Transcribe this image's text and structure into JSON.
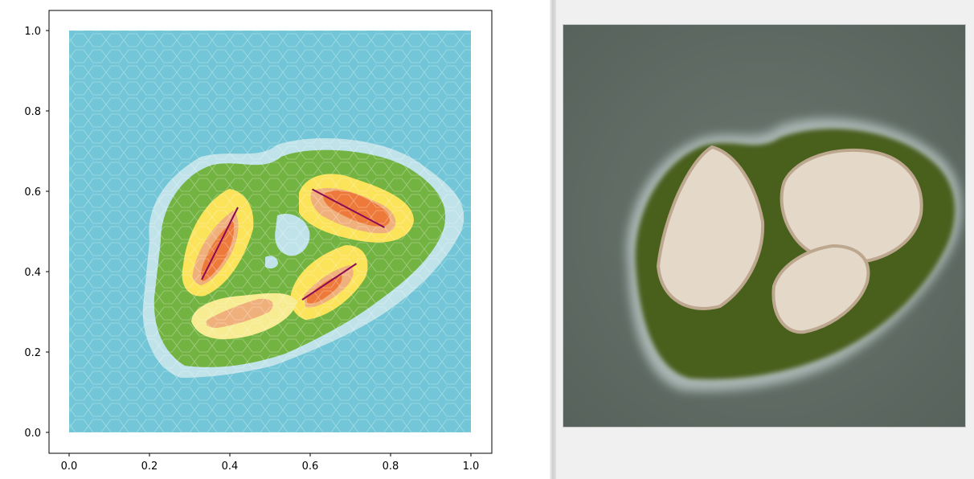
{
  "chart_data": {
    "type": "map",
    "xlim": [
      0,
      1
    ],
    "ylim": [
      0,
      1
    ],
    "x_ticks": [
      "0.0",
      "0.2",
      "0.4",
      "0.6",
      "0.8",
      "1.0"
    ],
    "y_ticks": [
      "0.0",
      "0.2",
      "0.4",
      "0.6",
      "0.8",
      "1.0"
    ],
    "colors": {
      "water": "#72c6d7",
      "shallow": "#c0e3ea",
      "land": "#73b341",
      "hill": "#fbe35a",
      "hill_light": "#f7ec92",
      "mountain": "#f0b07c",
      "peak": "#ed7a3b",
      "ridge": "#8b0a55"
    },
    "ridges": [
      {
        "x": [
          0.33,
          0.42
        ],
        "y": [
          0.38,
          0.56
        ]
      },
      {
        "x": [
          0.605,
          0.785
        ],
        "y": [
          0.605,
          0.51
        ]
      },
      {
        "x": [
          0.58,
          0.715
        ],
        "y": [
          0.33,
          0.42
        ]
      }
    ]
  },
  "render_view": {
    "colors": {
      "sea": "#5e6a63",
      "foam": "#a9b6b4",
      "grass": "#4a5f1e",
      "rock": "#e4d8c8",
      "rock_shadow": "#bda88f"
    }
  }
}
